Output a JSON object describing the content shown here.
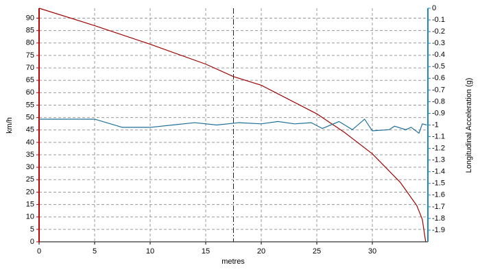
{
  "chart_data": {
    "type": "line",
    "xlabel": "metres",
    "ylabel": "km/h",
    "y2label": "Longitudinal Acceleration (g)",
    "xlim": [
      0,
      35
    ],
    "xticks": [
      0,
      5,
      10,
      15,
      20,
      25,
      30
    ],
    "ylim": [
      0,
      94
    ],
    "yticks": [
      0,
      5,
      10,
      15,
      20,
      25,
      30,
      35,
      40,
      45,
      50,
      55,
      60,
      65,
      70,
      75,
      80,
      85,
      90
    ],
    "y2lim": [
      -2,
      0
    ],
    "y2ticks": [
      0,
      -0.1,
      -0.2,
      -0.3,
      -0.4,
      -0.5,
      -0.6,
      -0.7,
      -0.8,
      -0.9,
      -1,
      -1.1,
      -1.2,
      -1.3,
      -1.4,
      -1.5,
      -1.6,
      -1.7,
      -1.8,
      -1.9
    ],
    "grid": true,
    "cursor_x": 17.5,
    "left_axis_color": "#c00000",
    "right_axis_color": "#1f88c0",
    "series": [
      {
        "color": "#a00000",
        "axis": "y",
        "x": [
          0,
          5,
          10,
          15,
          17.5,
          20,
          25,
          27.5,
          30,
          32.5,
          34,
          34.5,
          34.8
        ],
        "values": [
          94,
          87,
          79.5,
          71.5,
          66.5,
          63,
          51.5,
          44,
          35.4,
          24,
          14.6,
          9,
          0
        ]
      },
      {
        "color": "#1a6f9a",
        "axis": "y2",
        "x": [
          0,
          5,
          7.5,
          10,
          14,
          16,
          18,
          20,
          21.5,
          23,
          24.5,
          25.5,
          27,
          28.2,
          29.3,
          30,
          31.5,
          32,
          33,
          33.5,
          34.2,
          34.5,
          34.9
        ],
        "values": [
          -0.95,
          -0.95,
          -1.02,
          -1.02,
          -0.98,
          -1.0,
          -0.98,
          -0.99,
          -0.97,
          -0.99,
          -0.98,
          -1.03,
          -0.97,
          -1.04,
          -0.95,
          -1.05,
          -1.04,
          -1.01,
          -1.04,
          -1.02,
          -1.07,
          -0.99,
          -1.0
        ]
      }
    ]
  }
}
